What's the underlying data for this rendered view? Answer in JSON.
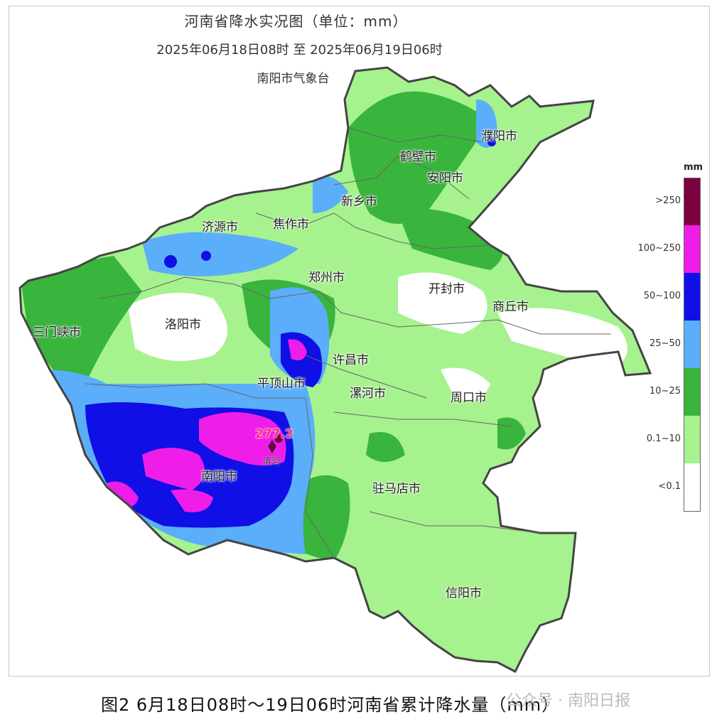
{
  "title": "河南省降水实况图（单位：mm）",
  "period": "2025年06月18日08时  至  2025年06月19日06时",
  "source": "南阳市气象台",
  "cities": [
    "濮阳市",
    "鹤壁市",
    "安阳市",
    "新乡市",
    "焦作市",
    "济源市",
    "郑州市",
    "开封市",
    "商丘市",
    "三门峡市",
    "洛阳市",
    "许昌市",
    "平顶山市",
    "漯河市",
    "周口市",
    "南阳市",
    "驻马店市",
    "信阳市"
  ],
  "peak": {
    "value": "277.2",
    "station": "淯河"
  },
  "legend": {
    "unit": "mm",
    "items": [
      {
        "label": ">250",
        "color": "#7a0040"
      },
      {
        "label": "100~250",
        "color": "#ee1ee8"
      },
      {
        "label": "50~100",
        "color": "#0f0fe6"
      },
      {
        "label": "25~50",
        "color": "#5aaefa"
      },
      {
        "label": "10~25",
        "color": "#39b43c"
      },
      {
        "label": "0.1~10",
        "color": "#a6f28e"
      },
      {
        "label": "<0.1",
        "color": "#ffffff"
      }
    ]
  },
  "caption": "图2  6月18日08时～19日06时河南省累计降水量（mm）",
  "watermark": "公众号 · 南阳日报"
}
